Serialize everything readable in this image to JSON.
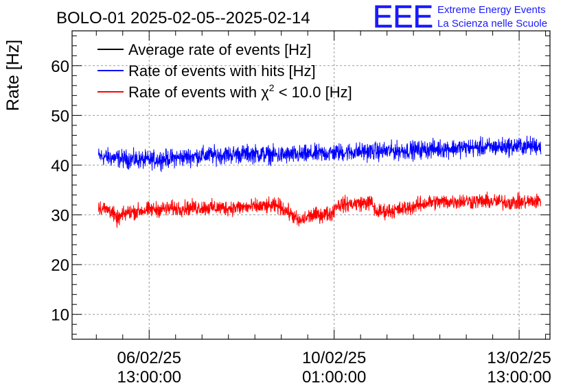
{
  "header": {
    "title": "BOLO-01 2025-02-05--2025-02-14",
    "logo_text": "EEE",
    "org_line1": "Extreme Energy Events",
    "org_line2": "La Scienza nelle Scuole"
  },
  "colors": {
    "average": "#000000",
    "hits": "#0000ff",
    "chi2": "#ff0000",
    "logo": "#1a1aff"
  },
  "chart_data": {
    "type": "line",
    "title": "BOLO-01 2025-02-05--2025-02-14",
    "xlabel": "",
    "ylabel": "Rate [Hz]",
    "x_range": [
      "2025-02-05 02:00:00",
      "2025-02-14 03:00:00"
    ],
    "ylim": [
      5,
      67
    ],
    "grid": true,
    "legend_position": "top-left",
    "y_ticks": [
      10,
      20,
      30,
      40,
      50,
      60
    ],
    "x_ticks": [
      {
        "time": "2025-02-06 13:00:00",
        "date": "06/02/25",
        "clock": "13:00:00"
      },
      {
        "time": "2025-02-10 01:00:00",
        "date": "10/02/25",
        "clock": "01:00:00"
      },
      {
        "time": "2025-02-13 13:00:00",
        "date": "13/02/25",
        "clock": "13:00:00"
      }
    ],
    "legend": [
      {
        "key": "average",
        "label": "Average rate of events [Hz]"
      },
      {
        "key": "hits",
        "label": "Rate of events with hits [Hz]"
      },
      {
        "key": "chi2",
        "label_prefix": "Rate of events with ",
        "label_symbol": "χ",
        "label_sup": "2",
        "label_suffix": " < 10.0 [Hz]"
      }
    ],
    "series": [
      {
        "key": "hits",
        "name": "Rate of events with hits [Hz]",
        "noise_amplitude": 1.3,
        "points": [
          [
            "2025-02-05 14:00:00",
            41.8
          ],
          [
            "2025-02-06 00:00:00",
            41.3
          ],
          [
            "2025-02-06 12:00:00",
            41.0
          ],
          [
            "2025-02-07 00:00:00",
            41.4
          ],
          [
            "2025-02-07 12:00:00",
            41.9
          ],
          [
            "2025-02-08 00:00:00",
            42.1
          ],
          [
            "2025-02-08 12:00:00",
            42.3
          ],
          [
            "2025-02-09 00:00:00",
            42.0
          ],
          [
            "2025-02-09 12:00:00",
            42.1
          ],
          [
            "2025-02-10 00:00:00",
            42.5
          ],
          [
            "2025-02-10 12:00:00",
            42.7
          ],
          [
            "2025-02-11 00:00:00",
            42.8
          ],
          [
            "2025-02-11 12:00:00",
            43.0
          ],
          [
            "2025-02-12 00:00:00",
            43.3
          ],
          [
            "2025-02-12 12:00:00",
            43.5
          ],
          [
            "2025-02-13 00:00:00",
            43.6
          ],
          [
            "2025-02-13 12:00:00",
            43.8
          ],
          [
            "2025-02-13 23:00:00",
            43.9
          ]
        ]
      },
      {
        "key": "chi2",
        "name": "Rate of events with χ2 < 10.0 [Hz]",
        "noise_amplitude": 1.1,
        "points": [
          [
            "2025-02-05 14:00:00",
            31.5
          ],
          [
            "2025-02-05 20:00:00",
            30.8
          ],
          [
            "2025-02-05 22:00:00",
            29.0
          ],
          [
            "2025-02-06 03:00:00",
            30.5
          ],
          [
            "2025-02-06 12:00:00",
            31.0
          ],
          [
            "2025-02-07 00:00:00",
            31.3
          ],
          [
            "2025-02-07 12:00:00",
            31.5
          ],
          [
            "2025-02-08 00:00:00",
            31.4
          ],
          [
            "2025-02-08 12:00:00",
            31.6
          ],
          [
            "2025-02-09 00:00:00",
            31.8
          ],
          [
            "2025-02-09 06:00:00",
            30.0
          ],
          [
            "2025-02-09 09:00:00",
            28.6
          ],
          [
            "2025-02-09 14:00:00",
            29.8
          ],
          [
            "2025-02-10 00:00:00",
            30.3
          ],
          [
            "2025-02-10 02:00:00",
            32.0
          ],
          [
            "2025-02-10 18:00:00",
            32.5
          ],
          [
            "2025-02-10 20:00:00",
            30.6
          ],
          [
            "2025-02-11 06:00:00",
            31.0
          ],
          [
            "2025-02-11 12:00:00",
            31.6
          ],
          [
            "2025-02-11 20:00:00",
            32.5
          ],
          [
            "2025-02-12 12:00:00",
            32.8
          ],
          [
            "2025-02-13 00:00:00",
            32.7
          ],
          [
            "2025-02-13 12:00:00",
            32.5
          ],
          [
            "2025-02-13 23:00:00",
            32.8
          ]
        ]
      }
    ]
  }
}
